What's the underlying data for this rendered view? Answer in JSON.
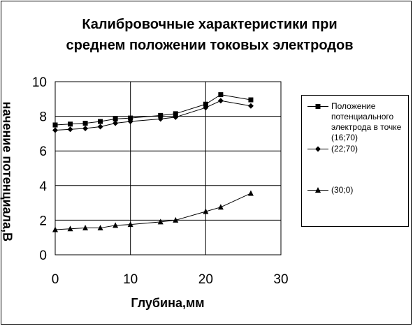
{
  "chart_data": {
    "type": "line",
    "title": "Калибровочные характеристики при среднем положении токовых электродов",
    "title_lines": [
      "Калибровочные характеристики при",
      "среднем положении токовых электродов"
    ],
    "xlabel": "Глубина,мм",
    "ylabel": "начение потенциала,В",
    "xlim": [
      0,
      30
    ],
    "ylim": [
      0,
      10
    ],
    "xticks": [
      "0",
      "10",
      "20",
      "30"
    ],
    "yticks": [
      "0",
      "2",
      "4",
      "6",
      "8",
      "10"
    ],
    "grid": true,
    "legend_position": "right",
    "series": [
      {
        "name": "Положение потенциального электрода в точке (16;70)",
        "marker": "square",
        "x": [
          0,
          2,
          4,
          6,
          8,
          10,
          14,
          16,
          20,
          22,
          26
        ],
        "y": [
          7.5,
          7.55,
          7.6,
          7.7,
          7.85,
          7.9,
          8.05,
          8.15,
          8.7,
          9.25,
          8.95
        ]
      },
      {
        "name": "(22;70)",
        "marker": "diamond",
        "x": [
          0,
          2,
          4,
          6,
          8,
          10,
          14,
          16,
          20,
          22,
          26
        ],
        "y": [
          7.2,
          7.25,
          7.3,
          7.4,
          7.6,
          7.7,
          7.85,
          7.95,
          8.5,
          8.9,
          8.6
        ]
      },
      {
        "name": "(30;0)",
        "marker": "triangle",
        "x": [
          0,
          2,
          4,
          6,
          8,
          10,
          14,
          16,
          20,
          22,
          26
        ],
        "y": [
          1.45,
          1.5,
          1.55,
          1.55,
          1.7,
          1.75,
          1.9,
          2.0,
          2.5,
          2.75,
          3.55
        ]
      }
    ]
  },
  "legend": {
    "item1": "Положение потенциального электрода в точке (16;70)",
    "item2": "(22;70)",
    "item3": "(30;0)"
  },
  "colors": {
    "line": "#000000",
    "grid": "#000000",
    "background": "#ffffff"
  }
}
